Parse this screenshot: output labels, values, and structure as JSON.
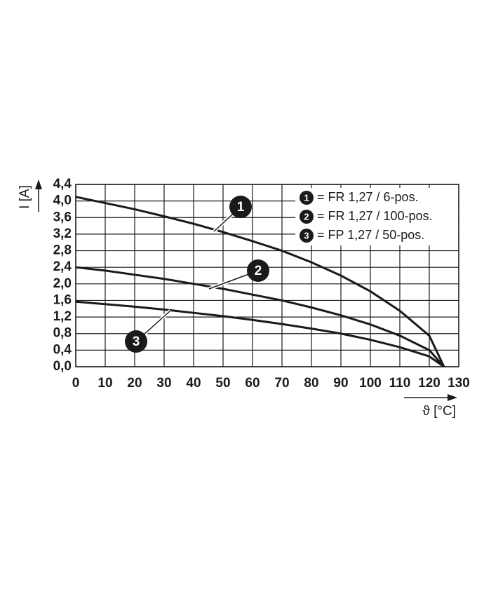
{
  "chart_data": {
    "type": "line",
    "x_label": "ϑ [°C]",
    "y_label": "I [A]",
    "x": [
      0,
      10,
      20,
      30,
      40,
      50,
      60,
      70,
      80,
      90,
      100,
      110,
      120,
      125
    ],
    "series": [
      {
        "label": "1",
        "name": "= FR 1,27 / 6-pos.",
        "color": "#1a1a1a",
        "values": [
          4.1,
          3.95,
          3.8,
          3.63,
          3.45,
          3.25,
          3.03,
          2.8,
          2.52,
          2.2,
          1.82,
          1.35,
          0.75,
          0
        ]
      },
      {
        "label": "2",
        "name": "= FR 1,27 / 100-pos.",
        "color": "#1a1a1a",
        "values": [
          2.4,
          2.32,
          2.22,
          2.12,
          2.0,
          1.88,
          1.74,
          1.6,
          1.43,
          1.24,
          1.02,
          0.75,
          0.4,
          0
        ]
      },
      {
        "label": "3",
        "name": "= FP 1,27 / 50-pos.",
        "color": "#1a1a1a",
        "values": [
          1.57,
          1.51,
          1.45,
          1.38,
          1.3,
          1.22,
          1.13,
          1.03,
          0.92,
          0.8,
          0.65,
          0.47,
          0.25,
          0
        ]
      }
    ],
    "xlim": [
      0,
      130
    ],
    "xticks": [
      0,
      10,
      20,
      30,
      40,
      50,
      60,
      70,
      80,
      90,
      100,
      110,
      120,
      130
    ],
    "ylim": [
      0,
      4.4
    ],
    "yticks": [
      {
        "value": 0,
        "label": "0,0"
      },
      {
        "value": 0.4,
        "label": "0,4"
      },
      {
        "value": 0.8,
        "label": "0,8"
      },
      {
        "value": 1.2,
        "label": "1,2"
      },
      {
        "value": 1.6,
        "label": "1,6"
      },
      {
        "value": 2.0,
        "label": "2,0"
      },
      {
        "value": 2.4,
        "label": "2,4"
      },
      {
        "value": 2.8,
        "label": "2,8"
      },
      {
        "value": 3.2,
        "label": "3,2"
      },
      {
        "value": 3.6,
        "label": "3,6"
      },
      {
        "value": 4.0,
        "label": "4,0"
      },
      {
        "value": 4.4,
        "label": "4,4"
      }
    ],
    "grid": true,
    "legend": "top-right"
  }
}
